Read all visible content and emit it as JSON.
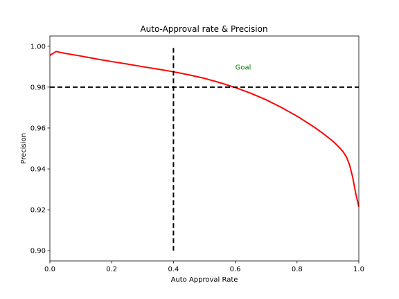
{
  "chart_data": {
    "type": "line",
    "title": "Auto-Approval rate & Precision",
    "xlabel": "Auto Approval Rate",
    "ylabel": "Precision",
    "xlim": [
      0.0,
      1.0
    ],
    "ylim": [
      0.895,
      1.005
    ],
    "xticks": [
      0.0,
      0.2,
      0.4,
      0.6,
      0.8,
      1.0
    ],
    "xtick_labels": [
      "0.0",
      "0.2",
      "0.4",
      "0.6",
      "0.8",
      "1.0"
    ],
    "yticks": [
      0.9,
      0.92,
      0.94,
      0.96,
      0.98,
      1.0
    ],
    "ytick_labels": [
      "0.90",
      "0.92",
      "0.94",
      "0.96",
      "0.98",
      "1.00"
    ],
    "grid": false,
    "series": [
      {
        "color": "#ff0000",
        "x": [
          0.0,
          0.02,
          0.05,
          0.1,
          0.15,
          0.2,
          0.25,
          0.3,
          0.35,
          0.4,
          0.45,
          0.5,
          0.55,
          0.6,
          0.65,
          0.7,
          0.75,
          0.8,
          0.85,
          0.88,
          0.9,
          0.92,
          0.94,
          0.95,
          0.96,
          0.97,
          0.98,
          0.99,
          1.0
        ],
        "y": [
          0.9955,
          0.9974,
          0.9965,
          0.9952,
          0.9938,
          0.9925,
          0.9913,
          0.99,
          0.9888,
          0.9875,
          0.986,
          0.9843,
          0.9822,
          0.9798,
          0.977,
          0.9738,
          0.97,
          0.9658,
          0.961,
          0.9578,
          0.9555,
          0.953,
          0.95,
          0.9482,
          0.9458,
          0.942,
          0.936,
          0.928,
          0.9215
        ]
      }
    ],
    "reference_lines": [
      {
        "orientation": "horizontal",
        "value": 0.98,
        "from": 0.0,
        "to": 1.0,
        "style": "dashed",
        "color": "#000000"
      },
      {
        "orientation": "vertical",
        "value": 0.4,
        "from": 0.9,
        "to": 1.0,
        "style": "dashed",
        "color": "#000000"
      }
    ],
    "annotations": [
      {
        "text": "Goal",
        "x": 0.6,
        "y": 0.99,
        "color": "#008000"
      }
    ]
  }
}
